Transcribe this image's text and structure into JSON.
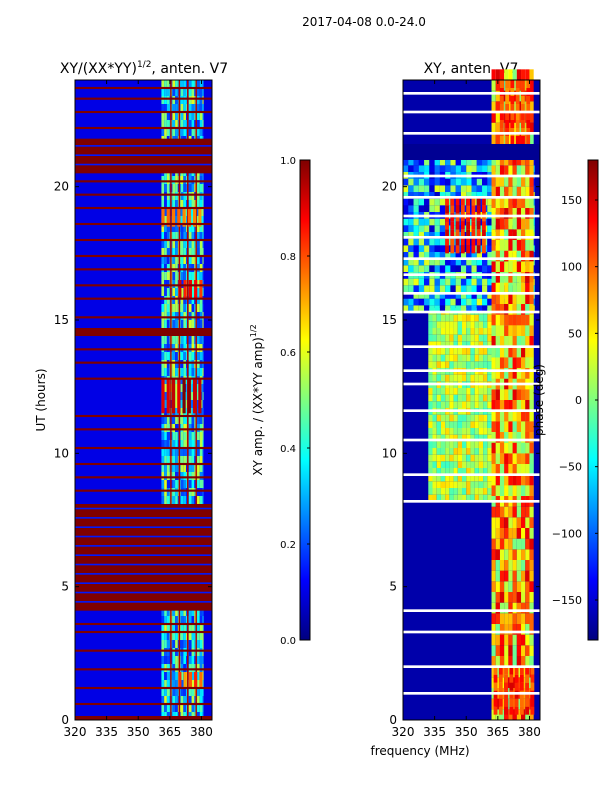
{
  "suptitle": "2017-04-08 0.0-24.0",
  "colors": {
    "jet": [
      "#00007f",
      "#0000ff",
      "#007fff",
      "#00ffff",
      "#7fff7f",
      "#ffff00",
      "#ff7f00",
      "#ff0000",
      "#7f0000"
    ],
    "axis": "#000000",
    "background": "#ffffff"
  },
  "chart_data": [
    {
      "type": "heatmap",
      "title": "XY/(XX*YY)",
      "title_exponent": "1/2",
      "title_suffix": ", anten. V7",
      "xlabel": "",
      "ylabel": "UT (hours)",
      "xlim": [
        320,
        385
      ],
      "ylim": [
        0,
        24
      ],
      "xticks": [
        320,
        335,
        350,
        365,
        380
      ],
      "yticks": [
        0,
        5,
        10,
        15,
        20
      ],
      "colorbar": {
        "label": "XY amp. / (XX*YY amp)",
        "label_exponent": "1/2",
        "range": [
          0.0,
          1.0
        ],
        "ticks": [
          "0.0",
          "0.2",
          "0.4",
          "0.6",
          "0.8",
          "1.0"
        ]
      },
      "background_level": 0.1,
      "active_band_mhz": [
        361,
        381
      ],
      "active_band_level": 0.35,
      "gap_columns_mhz": [
        365.5,
        369.5,
        373.5,
        377.5
      ],
      "saturated_intervals_hours": [
        [
          0.0,
          0.15
        ],
        [
          4.1,
          8.1
        ],
        [
          20.5,
          21.8
        ],
        [
          14.4,
          14.7
        ]
      ],
      "flagged_scan_hours": [
        0.6,
        1.2,
        1.9,
        2.6,
        3.3,
        3.6,
        5.2,
        5.6,
        8.6,
        9.1,
        9.6,
        10.2,
        10.9,
        11.4,
        12.8,
        13.4,
        13.9,
        15.1,
        15.8,
        16.3,
        16.9,
        17.4,
        18.0,
        18.6,
        19.2,
        19.7,
        20.2,
        22.2,
        22.8,
        23.3,
        23.7
      ],
      "hot_patches": [
        {
          "hours": [
            11.5,
            12.8
          ],
          "mhz": [
            361,
            381
          ],
          "level": 0.85
        },
        {
          "hours": [
            15.8,
            16.5
          ],
          "mhz": [
            369,
            381
          ],
          "level": 0.8
        },
        {
          "hours": [
            18.5,
            19.2
          ],
          "mhz": [
            361,
            381
          ],
          "level": 0.7
        },
        {
          "hours": [
            1.2,
            1.8
          ],
          "mhz": [
            369,
            381
          ],
          "level": 0.7
        }
      ]
    },
    {
      "type": "heatmap",
      "title": "XY, anten. V7",
      "xlabel": "frequency (MHz)",
      "ylabel": "",
      "xlim": [
        320,
        385
      ],
      "ylim": [
        0,
        24
      ],
      "xticks": [
        320,
        335,
        350,
        365,
        380
      ],
      "yticks": [
        0,
        5,
        10,
        15,
        20
      ],
      "colorbar": {
        "label": "phase (deg)",
        "range": [
          -180,
          180
        ],
        "ticks": [
          "−150",
          "−100",
          "−50",
          "0",
          "50",
          "100",
          "150"
        ]
      },
      "background_phase": -165,
      "active_band_mhz": [
        362,
        382
      ],
      "active_band_phase": 70,
      "phase_region": {
        "hours": [
          8.2,
          15.3
        ],
        "mhz": [
          332,
          382
        ],
        "phase": 20
      },
      "upper_region": {
        "hours": [
          15.3,
          21.0
        ],
        "mhz": [
          320,
          382
        ],
        "phase": -60
      },
      "blank_interval_hours": [
        21.0,
        21.6
      ],
      "white_scan_hours": [
        1.0,
        2.0,
        3.3,
        4.1,
        8.2,
        9.2,
        10.5,
        11.6,
        12.6,
        13.1,
        14.0,
        15.3,
        16.0,
        16.7,
        17.3,
        18.1,
        18.9,
        19.6,
        20.4,
        22.0,
        22.8,
        23.5
      ],
      "hot_patches": [
        {
          "hours": [
            21.6,
            24.0
          ],
          "mhz": [
            366,
            380
          ],
          "phase": 140
        },
        {
          "hours": [
            0.2,
            2.0
          ],
          "mhz": [
            363,
            381
          ],
          "phase": 150
        },
        {
          "hours": [
            17.5,
            19.5
          ],
          "mhz": [
            340,
            360
          ],
          "phase": 160
        }
      ]
    }
  ]
}
